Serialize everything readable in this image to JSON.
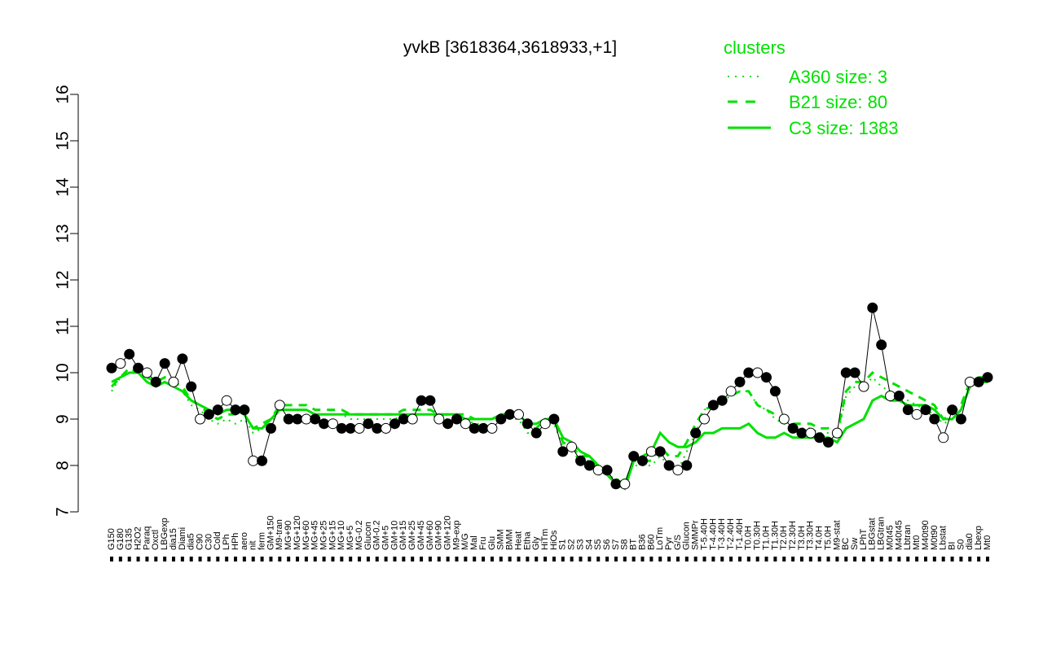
{
  "chart_data": {
    "type": "line",
    "title": "yvkB [3618364,3618933,+1]",
    "xlabel": "",
    "ylabel": "",
    "ylim": [
      7,
      16
    ],
    "yticks": [
      7,
      8,
      9,
      10,
      11,
      12,
      13,
      14,
      15,
      16
    ],
    "grid": false,
    "legend": {
      "title": "clusters",
      "placement": "top-right",
      "entries": [
        {
          "label": "A360 size: 3",
          "style": "dotted"
        },
        {
          "label": "B21 size: 80",
          "style": "dashed"
        },
        {
          "label": "C3 size: 1383",
          "style": "solid"
        }
      ]
    },
    "colors": {
      "axis": "#000000",
      "cluster_line": "#00e000",
      "point_stroke": "#000000",
      "point_dark": "#000000",
      "point_light": "#ffffff"
    },
    "xtick_labels": [
      "G150",
      "G180",
      "G135",
      "H2O2",
      "Paraq",
      "Oxctl",
      "LBGexp",
      "dia15",
      "Diami",
      "dia5",
      "C90",
      "C30",
      "Cold",
      "LPh",
      "HPh",
      "aero",
      "nit",
      "ferm",
      "GM+150",
      "M9-tran",
      "MG+90",
      "MG+120",
      "MG+60",
      "MG+45",
      "MG+25",
      "MG+15",
      "MG+10",
      "MG+5",
      "MG-0.2",
      "Glucon",
      "GM-0.2",
      "GM+5",
      "GM+10",
      "GM+15",
      "GM+25",
      "GM+45",
      "GM+60",
      "GM+90",
      "GM+120",
      "M9-exp",
      "M/G",
      "Mal",
      "Fru",
      "Glu",
      "SMM",
      "BMM",
      "Heat",
      "Etha",
      "Gly",
      "HiTm",
      "HiOs",
      "S1",
      "S2",
      "S3",
      "S4",
      "S5",
      "S6",
      "S7",
      "S8",
      "BT",
      "B36",
      "B60",
      "LoTm",
      "Pyr",
      "G/S",
      "Glucon",
      "SMMPr",
      "T-5.40H",
      "T-4.40H",
      "T-3.40H",
      "T-2.40H",
      "T-1.40H",
      "T0.0H",
      "T0.30H",
      "T1.0H",
      "T1.30H",
      "T2.0H",
      "T2.30H",
      "T3.0H",
      "T3.30H",
      "T4.0H",
      "T5.0H",
      "M9-stat",
      "BC",
      "Sw",
      "LPhT",
      "LBGstat",
      "LBGtran",
      "M0t45",
      "M40t45",
      "Lbtran",
      "Mt0",
      "M40t90",
      "M0t90",
      "Lbstat",
      "BI",
      "S0",
      "dia0",
      "Lbexp",
      "Mt0"
    ],
    "series": [
      {
        "name": "A360 size: 3",
        "values": [
          9.6,
          9.9,
          10.0,
          10.0,
          9.8,
          9.7,
          9.8,
          9.7,
          9.6,
          9.3,
          9.2,
          9.0,
          8.9,
          9.0,
          8.9,
          9.0,
          8.7,
          8.8,
          8.9,
          9.2,
          9.2,
          9.2,
          9.2,
          9.1,
          9.1,
          9.1,
          9.1,
          9.0,
          9.0,
          9.0,
          9.0,
          9.0,
          9.0,
          9.1,
          9.1,
          9.1,
          9.1,
          9.0,
          9.0,
          9.0,
          9.0,
          8.9,
          8.9,
          8.9,
          9.0,
          9.0,
          9.0,
          8.7,
          8.7,
          8.9,
          8.9,
          8.4,
          8.3,
          8.1,
          8.1,
          7.8,
          7.8,
          7.7,
          7.7,
          8.0,
          8.0,
          8.0,
          8.2,
          8.0,
          7.9,
          8.3,
          8.7,
          9.2,
          9.3,
          9.4,
          9.5,
          9.6,
          9.6,
          9.3,
          9.2,
          9.0,
          8.9,
          8.8,
          8.8,
          8.8,
          8.7,
          8.7,
          8.6,
          9.5,
          9.7,
          9.7,
          9.9,
          9.7,
          9.6,
          9.5,
          9.4,
          9.3,
          9.2,
          9.1,
          8.9,
          9.0,
          9.2,
          9.7,
          9.8,
          9.8
        ]
      },
      {
        "name": "B21 size: 80",
        "values": [
          9.7,
          9.9,
          10.1,
          10.0,
          9.9,
          9.8,
          9.9,
          9.8,
          9.7,
          9.4,
          9.3,
          9.1,
          9.0,
          9.1,
          9.1,
          9.1,
          8.8,
          8.9,
          9.0,
          9.3,
          9.3,
          9.3,
          9.3,
          9.2,
          9.2,
          9.2,
          9.2,
          9.1,
          9.1,
          9.1,
          9.1,
          9.1,
          9.1,
          9.2,
          9.2,
          9.2,
          9.2,
          9.1,
          9.1,
          9.1,
          9.1,
          9.0,
          9.0,
          9.0,
          9.1,
          9.1,
          9.1,
          8.8,
          8.8,
          9.0,
          9.0,
          8.5,
          8.4,
          8.2,
          8.2,
          7.9,
          7.8,
          7.7,
          7.6,
          8.1,
          8.1,
          8.1,
          8.4,
          8.2,
          8.2,
          8.5,
          8.9,
          9.2,
          9.3,
          9.4,
          9.5,
          9.6,
          9.6,
          9.3,
          9.2,
          9.1,
          9.0,
          8.9,
          8.9,
          8.9,
          8.8,
          8.8,
          8.7,
          9.6,
          9.8,
          9.8,
          10.0,
          9.9,
          9.8,
          9.7,
          9.6,
          9.5,
          9.4,
          9.3,
          9.0,
          9.1,
          9.3,
          9.8,
          9.9,
          9.9
        ]
      },
      {
        "name": "C3 size: 1383",
        "values": [
          9.8,
          9.9,
          10.0,
          10.0,
          9.8,
          9.7,
          9.8,
          9.7,
          9.6,
          9.4,
          9.3,
          9.2,
          9.1,
          9.2,
          9.2,
          9.1,
          8.8,
          8.8,
          9.0,
          9.2,
          9.2,
          9.2,
          9.2,
          9.1,
          9.1,
          9.1,
          9.1,
          9.1,
          9.1,
          9.1,
          9.1,
          9.1,
          9.1,
          9.1,
          9.1,
          9.1,
          9.1,
          9.1,
          9.1,
          9.1,
          9.0,
          9.0,
          9.0,
          9.0,
          9.1,
          9.1,
          9.1,
          8.9,
          8.9,
          9.0,
          9.0,
          8.6,
          8.5,
          8.3,
          8.2,
          8.0,
          7.8,
          7.6,
          7.5,
          8.1,
          8.2,
          8.3,
          8.7,
          8.5,
          8.4,
          8.4,
          8.5,
          8.7,
          8.7,
          8.8,
          8.8,
          8.8,
          8.9,
          8.7,
          8.6,
          8.6,
          8.7,
          8.6,
          8.6,
          8.6,
          8.6,
          8.6,
          8.5,
          8.8,
          8.9,
          9.0,
          9.4,
          9.5,
          9.4,
          9.4,
          9.3,
          9.3,
          9.3,
          9.2,
          9.0,
          9.0,
          9.2,
          9.7,
          9.8,
          9.8
        ]
      },
      {
        "name": "",
        "values": [
          10.1,
          10.2,
          10.4,
          10.1,
          10.0,
          9.8,
          10.2,
          9.8,
          10.3,
          9.7,
          9.0,
          9.1,
          9.2,
          9.4,
          9.2,
          9.2,
          8.1,
          8.1,
          8.8,
          9.3,
          9.0,
          9.0,
          9.0,
          9.0,
          8.9,
          8.9,
          8.8,
          8.8,
          8.8,
          8.9,
          8.8,
          8.8,
          8.9,
          9.0,
          9.0,
          9.4,
          9.4,
          9.0,
          8.9,
          9.0,
          8.9,
          8.8,
          8.8,
          8.8,
          9.0,
          9.1,
          9.1,
          8.9,
          8.7,
          8.9,
          9.0,
          8.3,
          8.4,
          8.1,
          8.0,
          7.9,
          7.9,
          7.6,
          7.6,
          8.2,
          8.1,
          8.3,
          8.3,
          8.0,
          7.9,
          8.0,
          8.7,
          9.0,
          9.3,
          9.4,
          9.6,
          9.8,
          10.0,
          10.0,
          9.9,
          9.6,
          9.0,
          8.8,
          8.7,
          8.7,
          8.6,
          8.5,
          8.7,
          10.0,
          10.0,
          9.7,
          11.4,
          10.6,
          9.5,
          9.5,
          9.2,
          9.1,
          9.2,
          9.0,
          8.6,
          9.2,
          9.0,
          9.8,
          9.8,
          9.9
        ]
      }
    ]
  }
}
